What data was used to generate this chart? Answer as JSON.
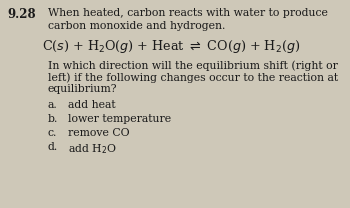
{
  "background_color": "#cec8b8",
  "text_color": "#1a1a1a",
  "fig_width": 3.5,
  "fig_height": 2.08,
  "dpi": 100,
  "problem_number": "9.28",
  "title_line1": "When heated, carbon reacts with water to produce",
  "title_line2": "carbon monoxide and hydrogen.",
  "equation": "C(\\textit{s}) + H\\textsubscript{2}O(\\textit{g}) + Heat \\rightleftharpoons CO(\\textit{g}) + H\\textsubscript{2}(\\textit{g})",
  "body_line1": "In which direction will the equilibrium shift (right or",
  "body_line2": "left) if the following changes occur to the reaction at",
  "body_line3": "equilibrium?",
  "items": [
    [
      "a.",
      "add heat"
    ],
    [
      "b.",
      "lower temperature"
    ],
    [
      "c.",
      "remove CO"
    ],
    [
      "d.",
      "add H\\u2082O"
    ]
  ],
  "num_bold": true,
  "fs_num": 8.5,
  "fs_title": 7.8,
  "fs_eq": 9.2,
  "fs_body": 7.8,
  "fs_item": 7.8
}
